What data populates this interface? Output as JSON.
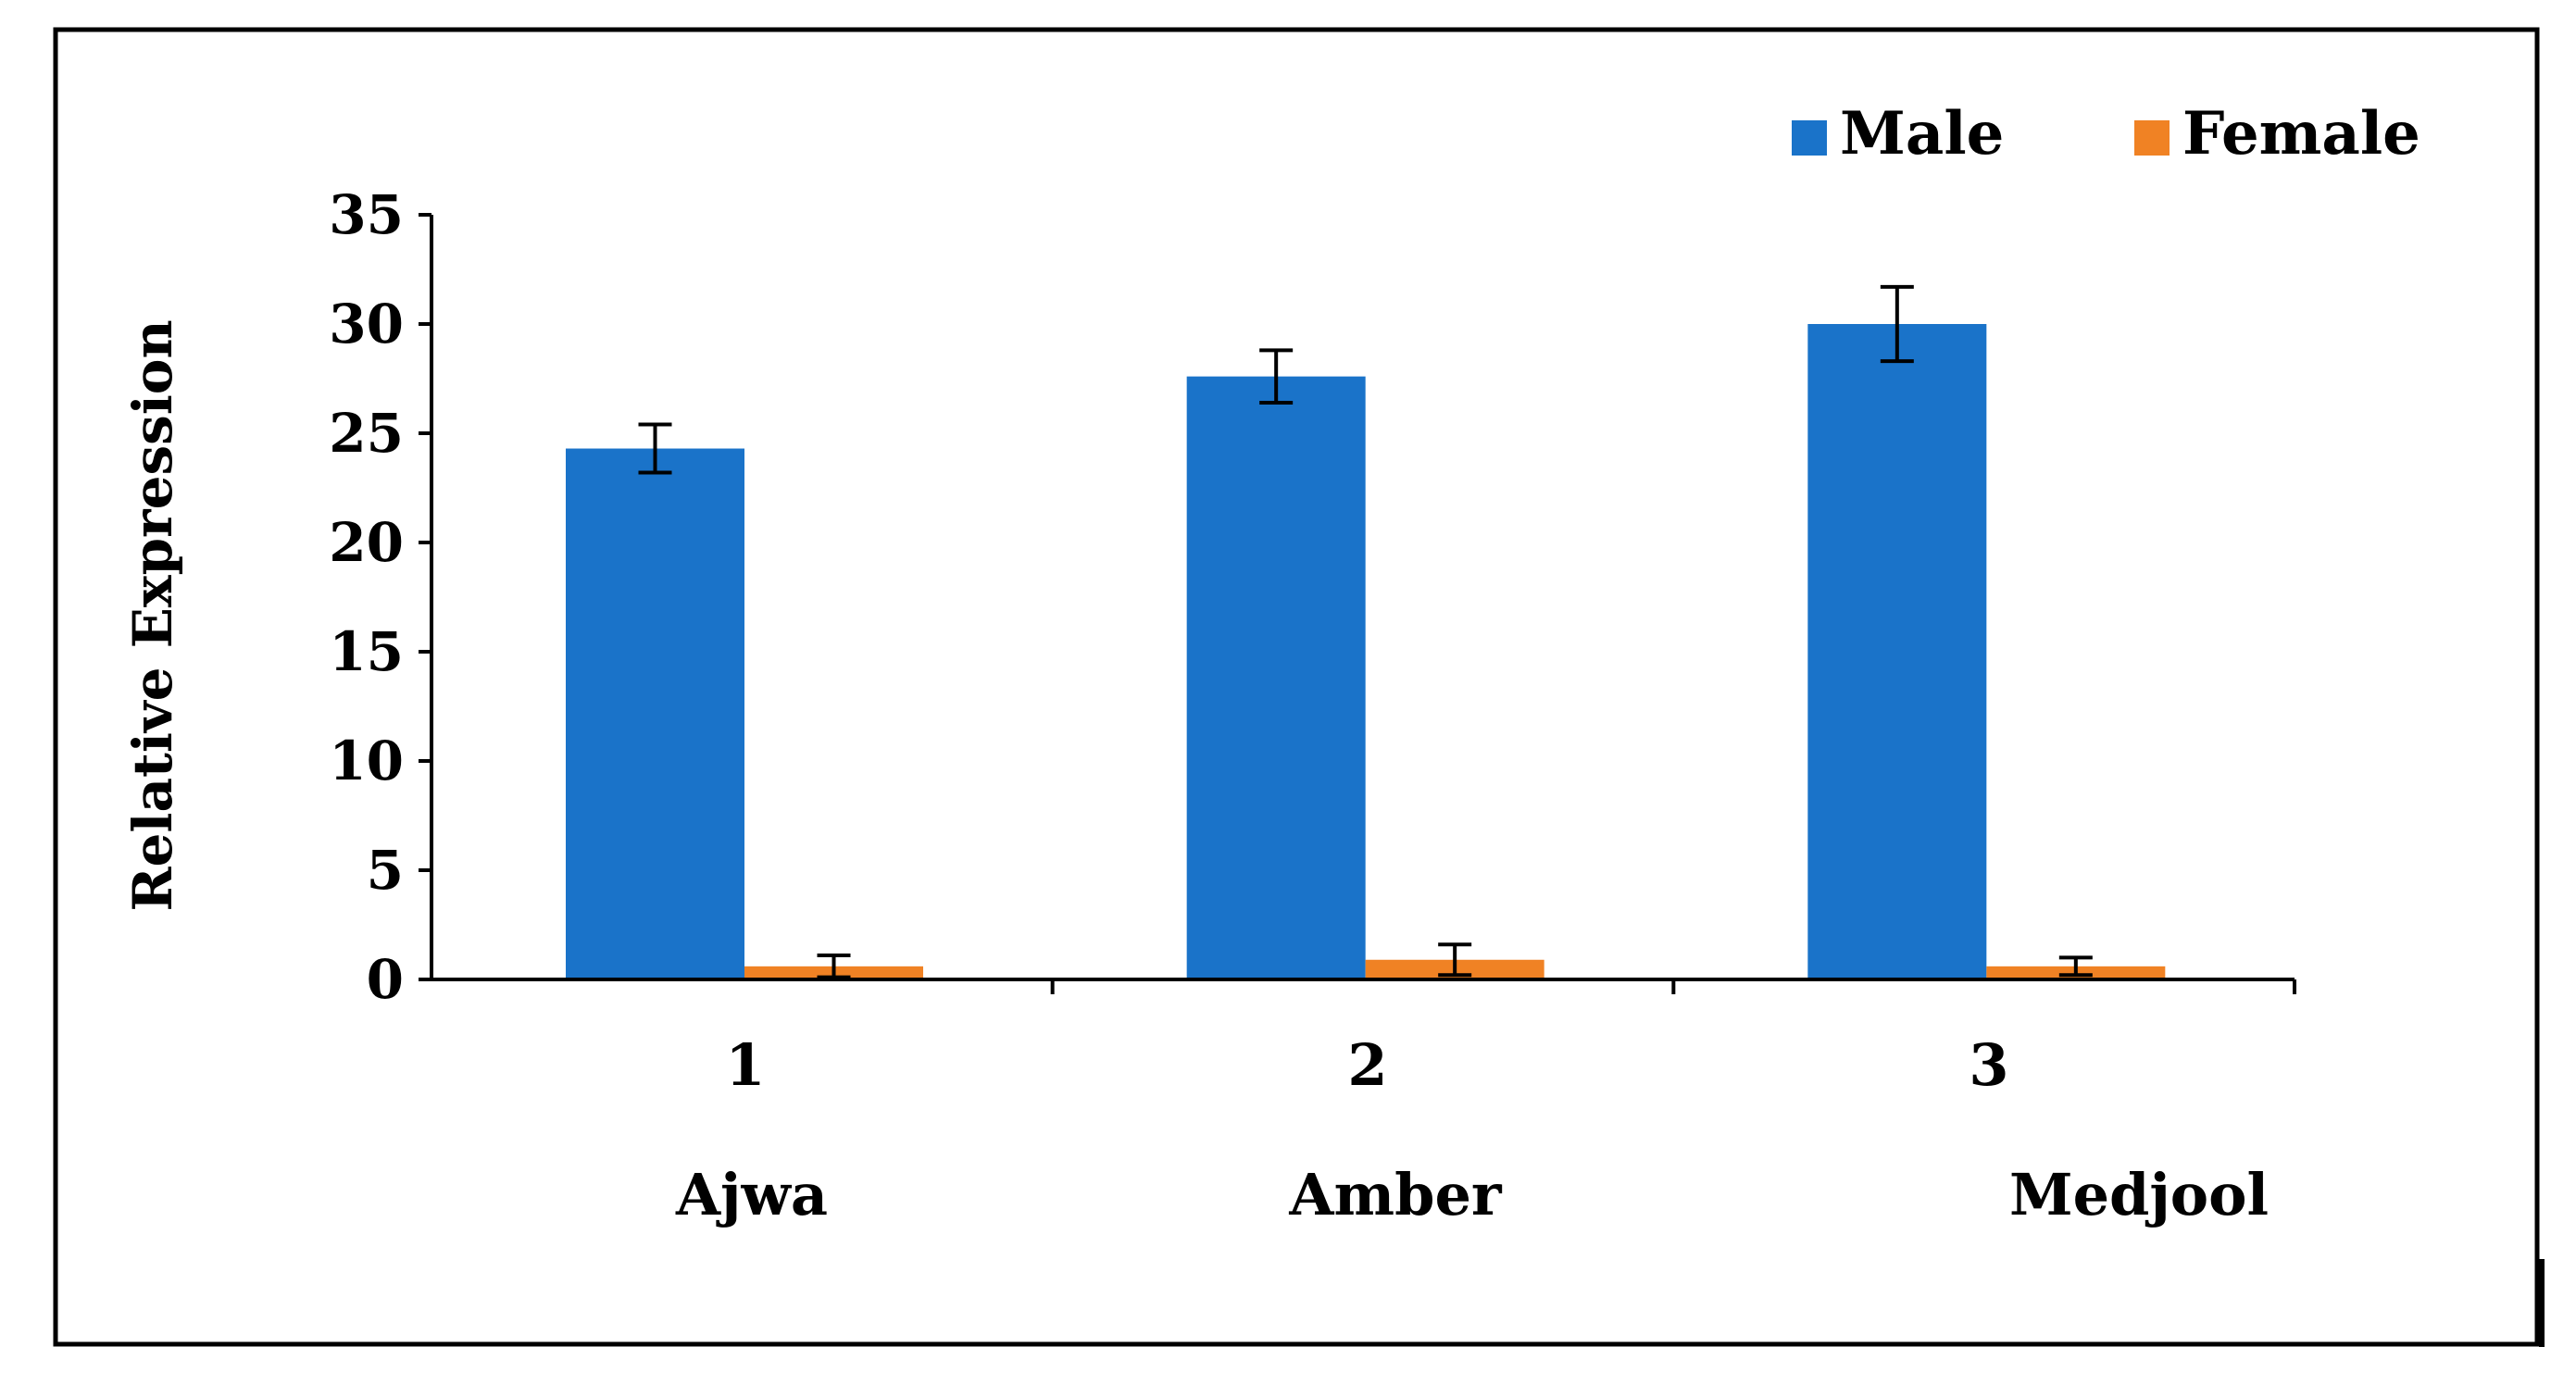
{
  "chart_data": {
    "type": "bar",
    "title": "",
    "xlabel": "",
    "ylabel": "Relative Expression",
    "ylim": [
      0,
      35
    ],
    "yticks": [
      "0",
      "5",
      "10",
      "15",
      "20",
      "25",
      "30",
      "35"
    ],
    "categories": [
      "1",
      "2",
      "3"
    ],
    "category_names": [
      "Ajwa",
      "Amber",
      "Medjool"
    ],
    "series": [
      {
        "name": "Male",
        "color": "#1a73c9",
        "values": [
          24.3,
          27.6,
          30.0
        ],
        "errors": [
          1.1,
          1.2,
          1.7
        ]
      },
      {
        "name": "Female",
        "color": "#f08224",
        "values": [
          0.6,
          0.9,
          0.6
        ],
        "errors": [
          0.5,
          0.7,
          0.4
        ]
      }
    ],
    "legend_position": "top-right",
    "grid": false
  }
}
